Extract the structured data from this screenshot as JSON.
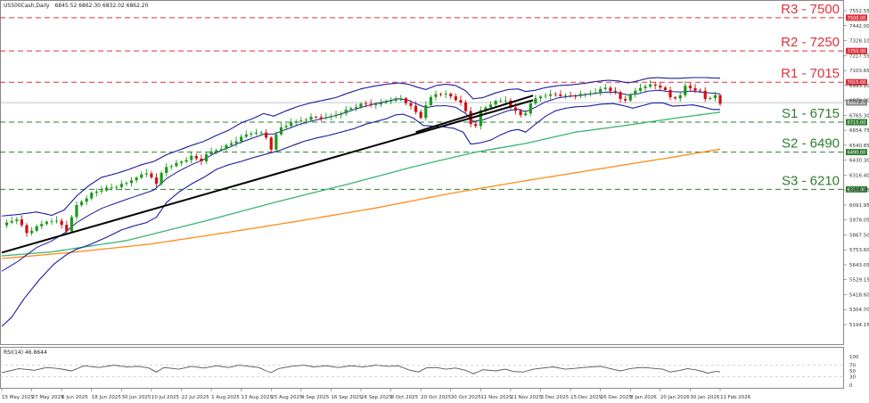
{
  "chart_data": {
    "type": "candlestick",
    "header": {
      "symbol": "US500Cash,Daily",
      "ohlc": "6845.52 6862.30 6832.02 6862.20",
      "rsi_label": "RSI(14) 46.8644"
    },
    "colors": {
      "bull": "#1a9a1a",
      "bear": "#d01010",
      "bollinger": "#1a1a9e",
      "sma100": "#3cb371",
      "sma200": "#ff8c1a",
      "resistance": "#e0303a",
      "support": "#2e7d32",
      "trendline": "#000000",
      "rsi": "#555555"
    },
    "price_axis": {
      "ticks": [
        "7552.55",
        "7442.00",
        "7328.10",
        "7217.55",
        "7103.65",
        "6993.10",
        "6879.20",
        "6765.30",
        "6654.75",
        "6540.85",
        "6430.30",
        "6316.40",
        "6205.85",
        "6091.95",
        "5978.05",
        "5867.50",
        "5753.60",
        "5643.05",
        "5529.15",
        "5418.60",
        "5304.70",
        "5194.15"
      ],
      "ylim": [
        5194.15,
        7552.55
      ]
    },
    "rsi_axis": {
      "ticks": [
        "100",
        "70",
        "50",
        "30",
        "0"
      ],
      "ylim": [
        0,
        100
      ],
      "levels": [
        70,
        30
      ]
    },
    "x_dates": [
      "15 May 2025",
      "27 May 2025",
      "6 Jun 2025",
      "18 Jun 2025",
      "30 Jun 2025",
      "10 Jul 2025",
      "22 Jul 2025",
      "1 Aug 2025",
      "13 Aug 2025",
      "25 Aug 2025",
      "4 Sep 2025",
      "16 Sep 2025",
      "26 Sep 2025",
      "8 Oct 2025",
      "20 Oct 2025",
      "30 Oct 2025",
      "11 Nov 2025",
      "21 Nov 2025",
      "3 Dec 2025",
      "15 Dec 2025",
      "26 Dec 2025",
      "8 Jan 2026",
      "20 Jan 2026",
      "30 Jan 2026",
      "11 Feb 2026"
    ],
    "levels": [
      {
        "label": "R3 - 7500",
        "value": 7500,
        "tag": "7500.00",
        "kind": "resistance"
      },
      {
        "label": "R2 - 7250",
        "value": 7250,
        "tag": "7250.00",
        "kind": "resistance"
      },
      {
        "label": "R1 - 7015",
        "value": 7015,
        "tag": "7015.00",
        "kind": "resistance"
      },
      {
        "label": "S1 - 6715",
        "value": 6715,
        "tag": "6715.00",
        "kind": "support"
      },
      {
        "label": "S2 - 6490",
        "value": 6490,
        "tag": "6490.00",
        "kind": "support"
      },
      {
        "label": "S3 - 6210",
        "value": 6210,
        "tag": "6210.00",
        "kind": "support"
      }
    ],
    "current_price": {
      "value": 6862.2,
      "tag": "6862.20"
    },
    "close_path": [
      [
        0,
        5940
      ],
      [
        12,
        5990
      ],
      [
        20,
        5880
      ],
      [
        28,
        5925
      ],
      [
        38,
        5980
      ],
      [
        46,
        5965
      ],
      [
        52,
        5900
      ],
      [
        60,
        6090
      ],
      [
        72,
        6180
      ],
      [
        82,
        6215
      ],
      [
        90,
        6225
      ],
      [
        100,
        6255
      ],
      [
        108,
        6305
      ],
      [
        118,
        6335
      ],
      [
        124,
        6245
      ],
      [
        130,
        6375
      ],
      [
        142,
        6410
      ],
      [
        152,
        6455
      ],
      [
        160,
        6425
      ],
      [
        166,
        6485
      ],
      [
        176,
        6520
      ],
      [
        186,
        6565
      ],
      [
        196,
        6620
      ],
      [
        206,
        6650
      ],
      [
        212,
        6600
      ],
      [
        216,
        6515
      ],
      [
        222,
        6668
      ],
      [
        232,
        6705
      ],
      [
        242,
        6735
      ],
      [
        250,
        6755
      ],
      [
        260,
        6745
      ],
      [
        270,
        6780
      ],
      [
        280,
        6820
      ],
      [
        290,
        6855
      ],
      [
        300,
        6840
      ],
      [
        310,
        6880
      ],
      [
        320,
        6895
      ],
      [
        328,
        6830
      ],
      [
        336,
        6750
      ],
      [
        340,
        6850
      ],
      [
        346,
        6925
      ],
      [
        354,
        6930
      ],
      [
        362,
        6900
      ],
      [
        368,
        6855
      ],
      [
        374,
        6765
      ],
      [
        378,
        6640
      ],
      [
        384,
        6800
      ],
      [
        394,
        6865
      ],
      [
        404,
        6880
      ],
      [
        410,
        6810
      ],
      [
        418,
        6755
      ],
      [
        424,
        6850
      ],
      [
        430,
        6915
      ],
      [
        436,
        6905
      ],
      [
        442,
        6930
      ],
      [
        452,
        6910
      ],
      [
        460,
        6915
      ],
      [
        468,
        6925
      ],
      [
        476,
        6945
      ],
      [
        484,
        6975
      ],
      [
        492,
        6935
      ],
      [
        498,
        6865
      ],
      [
        504,
        6915
      ],
      [
        510,
        6965
      ],
      [
        516,
        6990
      ],
      [
        522,
        6995
      ],
      [
        530,
        6975
      ],
      [
        536,
        6900
      ],
      [
        542,
        6895
      ],
      [
        548,
        6985
      ],
      [
        554,
        6965
      ],
      [
        560,
        6945
      ],
      [
        566,
        6860
      ],
      [
        570,
        6940
      ],
      [
        576,
        6850
      ]
    ],
    "sma100_path": [
      [
        0,
        5710
      ],
      [
        40,
        5740
      ],
      [
        100,
        5825
      ],
      [
        160,
        5965
      ],
      [
        220,
        6115
      ],
      [
        280,
        6255
      ],
      [
        330,
        6380
      ],
      [
        380,
        6490
      ],
      [
        420,
        6555
      ],
      [
        460,
        6640
      ],
      [
        500,
        6690
      ],
      [
        540,
        6745
      ],
      [
        576,
        6790
      ]
    ],
    "sma200_path": [
      [
        0,
        5690
      ],
      [
        60,
        5740
      ],
      [
        120,
        5800
      ],
      [
        180,
        5885
      ],
      [
        240,
        5975
      ],
      [
        300,
        6070
      ],
      [
        360,
        6180
      ],
      [
        420,
        6275
      ],
      [
        480,
        6365
      ],
      [
        540,
        6455
      ],
      [
        576,
        6512
      ]
    ],
    "bb_upper_path": [
      [
        0,
        6010
      ],
      [
        12,
        6020
      ],
      [
        28,
        6040
      ],
      [
        40,
        6015
      ],
      [
        50,
        6055
      ],
      [
        60,
        6160
      ],
      [
        70,
        6240
      ],
      [
        80,
        6300
      ],
      [
        92,
        6330
      ],
      [
        102,
        6360
      ],
      [
        112,
        6395
      ],
      [
        122,
        6420
      ],
      [
        132,
        6470
      ],
      [
        142,
        6505
      ],
      [
        152,
        6540
      ],
      [
        162,
        6570
      ],
      [
        172,
        6615
      ],
      [
        182,
        6655
      ],
      [
        192,
        6710
      ],
      [
        202,
        6745
      ],
      [
        210,
        6780
      ],
      [
        218,
        6760
      ],
      [
        228,
        6800
      ],
      [
        238,
        6835
      ],
      [
        248,
        6860
      ],
      [
        258,
        6880
      ],
      [
        268,
        6900
      ],
      [
        278,
        6935
      ],
      [
        288,
        6965
      ],
      [
        298,
        6985
      ],
      [
        308,
        7000
      ],
      [
        318,
        7010
      ],
      [
        326,
        7000
      ],
      [
        334,
        6975
      ],
      [
        340,
        6960
      ],
      [
        348,
        6990
      ],
      [
        356,
        7000
      ],
      [
        364,
        6990
      ],
      [
        372,
        6950
      ],
      [
        378,
        6890
      ],
      [
        386,
        6900
      ],
      [
        396,
        6935
      ],
      [
        406,
        6960
      ],
      [
        414,
        6965
      ],
      [
        420,
        6945
      ],
      [
        428,
        6955
      ],
      [
        436,
        6975
      ],
      [
        446,
        6990
      ],
      [
        456,
        6995
      ],
      [
        466,
        7005
      ],
      [
        476,
        7020
      ],
      [
        486,
        7030
      ],
      [
        494,
        7025
      ],
      [
        502,
        7010
      ],
      [
        510,
        7025
      ],
      [
        518,
        7045
      ],
      [
        526,
        7050
      ],
      [
        534,
        7045
      ],
      [
        544,
        7045
      ],
      [
        554,
        7050
      ],
      [
        564,
        7050
      ],
      [
        576,
        7045
      ]
    ],
    "bb_lower_path": [
      [
        0,
        5180
      ],
      [
        8,
        5250
      ],
      [
        18,
        5390
      ],
      [
        30,
        5530
      ],
      [
        42,
        5650
      ],
      [
        52,
        5720
      ],
      [
        60,
        5760
      ],
      [
        72,
        5800
      ],
      [
        84,
        5850
      ],
      [
        96,
        5905
      ],
      [
        106,
        5935
      ],
      [
        116,
        5960
      ],
      [
        124,
        6000
      ],
      [
        132,
        6110
      ],
      [
        142,
        6190
      ],
      [
        152,
        6250
      ],
      [
        162,
        6300
      ],
      [
        172,
        6360
      ],
      [
        182,
        6395
      ],
      [
        192,
        6420
      ],
      [
        202,
        6450
      ],
      [
        212,
        6475
      ],
      [
        222,
        6500
      ],
      [
        232,
        6535
      ],
      [
        242,
        6570
      ],
      [
        252,
        6595
      ],
      [
        262,
        6615
      ],
      [
        272,
        6640
      ],
      [
        282,
        6665
      ],
      [
        292,
        6700
      ],
      [
        300,
        6720
      ],
      [
        308,
        6740
      ],
      [
        316,
        6770
      ],
      [
        322,
        6775
      ],
      [
        330,
        6745
      ],
      [
        338,
        6690
      ],
      [
        346,
        6685
      ],
      [
        354,
        6680
      ],
      [
        362,
        6670
      ],
      [
        370,
        6640
      ],
      [
        376,
        6550
      ],
      [
        384,
        6560
      ],
      [
        392,
        6580
      ],
      [
        400,
        6620
      ],
      [
        408,
        6650
      ],
      [
        414,
        6660
      ],
      [
        420,
        6640
      ],
      [
        428,
        6700
      ],
      [
        436,
        6760
      ],
      [
        444,
        6800
      ],
      [
        452,
        6820
      ],
      [
        460,
        6830
      ],
      [
        470,
        6835
      ],
      [
        480,
        6850
      ],
      [
        490,
        6855
      ],
      [
        498,
        6840
      ],
      [
        506,
        6820
      ],
      [
        514,
        6840
      ],
      [
        522,
        6860
      ],
      [
        530,
        6860
      ],
      [
        538,
        6835
      ],
      [
        546,
        6840
      ],
      [
        554,
        6845
      ],
      [
        562,
        6830
      ],
      [
        570,
        6810
      ],
      [
        576,
        6810
      ]
    ],
    "trendlines": [
      {
        "from": [
          0,
          5735
        ],
        "to": [
          426,
          6880
        ]
      },
      {
        "from": [
          332,
          6640
        ],
        "to": [
          426,
          6915
        ]
      }
    ],
    "rsi_path": [
      [
        0,
        44
      ],
      [
        14,
        58
      ],
      [
        26,
        52
      ],
      [
        36,
        62
      ],
      [
        46,
        58
      ],
      [
        56,
        50
      ],
      [
        66,
        68
      ],
      [
        78,
        62
      ],
      [
        90,
        70
      ],
      [
        100,
        64
      ],
      [
        110,
        66
      ],
      [
        118,
        60
      ],
      [
        124,
        46
      ],
      [
        130,
        62
      ],
      [
        142,
        56
      ],
      [
        152,
        66
      ],
      [
        162,
        60
      ],
      [
        172,
        68
      ],
      [
        182,
        62
      ],
      [
        190,
        70
      ],
      [
        198,
        66
      ],
      [
        206,
        62
      ],
      [
        212,
        50
      ],
      [
        216,
        44
      ],
      [
        222,
        58
      ],
      [
        232,
        66
      ],
      [
        242,
        70
      ],
      [
        250,
        64
      ],
      [
        260,
        68
      ],
      [
        270,
        62
      ],
      [
        280,
        68
      ],
      [
        290,
        64
      ],
      [
        300,
        70
      ],
      [
        310,
        66
      ],
      [
        318,
        68
      ],
      [
        326,
        54
      ],
      [
        334,
        46
      ],
      [
        340,
        60
      ],
      [
        348,
        62
      ],
      [
        356,
        56
      ],
      [
        364,
        60
      ],
      [
        372,
        52
      ],
      [
        378,
        40
      ],
      [
        386,
        54
      ],
      [
        396,
        50
      ],
      [
        404,
        56
      ],
      [
        410,
        48
      ],
      [
        418,
        46
      ],
      [
        426,
        56
      ],
      [
        434,
        60
      ],
      [
        442,
        64
      ],
      [
        452,
        56
      ],
      [
        462,
        60
      ],
      [
        472,
        64
      ],
      [
        480,
        66
      ],
      [
        488,
        58
      ],
      [
        496,
        50
      ],
      [
        504,
        58
      ],
      [
        512,
        62
      ],
      [
        520,
        60
      ],
      [
        530,
        56
      ],
      [
        536,
        46
      ],
      [
        544,
        52
      ],
      [
        550,
        58
      ],
      [
        556,
        54
      ],
      [
        562,
        48
      ],
      [
        566,
        42
      ],
      [
        572,
        48
      ],
      [
        576,
        47
      ]
    ]
  }
}
